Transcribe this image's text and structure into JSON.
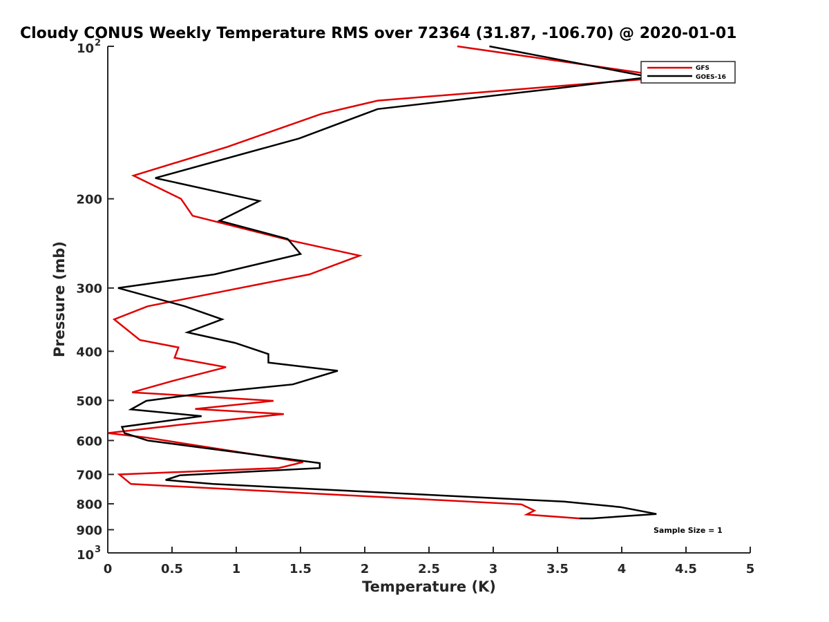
{
  "chart_data": {
    "type": "line",
    "title": "Cloudy CONUS Weekly Temperature RMS over 72364 (31.87, -106.70) @ 2020-01-01",
    "xlabel": "Temperature (K)",
    "ylabel": "Pressure (mb)",
    "xlim": [
      0,
      5
    ],
    "ylim": [
      100,
      1000
    ],
    "y_scale": "log",
    "y_reversed": true,
    "grid": false,
    "x_ticks": [
      {
        "value": 0,
        "label": "0"
      },
      {
        "value": 0.5,
        "label": "0.5"
      },
      {
        "value": 1,
        "label": "1"
      },
      {
        "value": 1.5,
        "label": "1.5"
      },
      {
        "value": 2,
        "label": "2"
      },
      {
        "value": 2.5,
        "label": "2.5"
      },
      {
        "value": 3,
        "label": "3"
      },
      {
        "value": 3.5,
        "label": "3.5"
      },
      {
        "value": 4,
        "label": "4"
      },
      {
        "value": 4.5,
        "label": "4.5"
      },
      {
        "value": 5,
        "label": "5"
      }
    ],
    "y_ticks": [
      {
        "value": 100,
        "label": "10",
        "sup": "2"
      },
      {
        "value": 200,
        "label": "200"
      },
      {
        "value": 300,
        "label": "300"
      },
      {
        "value": 400,
        "label": "400"
      },
      {
        "value": 500,
        "label": "500"
      },
      {
        "value": 600,
        "label": "600"
      },
      {
        "value": 700,
        "label": "700"
      },
      {
        "value": 800,
        "label": "800"
      },
      {
        "value": 900,
        "label": "900"
      },
      {
        "value": 1000,
        "label": "10",
        "sup": "3"
      }
    ],
    "legend_position": "top-right",
    "series": [
      {
        "name": "GFS",
        "color": "#e00000",
        "points": [
          [
            2.72,
            100
          ],
          [
            4.38,
            115
          ],
          [
            2.1,
            128
          ],
          [
            1.66,
            136
          ],
          [
            0.93,
            158
          ],
          [
            0.2,
            180
          ],
          [
            0.57,
            200
          ],
          [
            0.66,
            216
          ],
          [
            1.43,
            242
          ],
          [
            1.96,
            259
          ],
          [
            1.57,
            282
          ],
          [
            1.03,
            300
          ],
          [
            0.31,
            326
          ],
          [
            0.05,
            346
          ],
          [
            0.25,
            380
          ],
          [
            0.55,
            393
          ],
          [
            0.52,
            412
          ],
          [
            0.92,
            430
          ],
          [
            0.5,
            458
          ],
          [
            0.19,
            482
          ],
          [
            1.29,
            501
          ],
          [
            0.68,
            520
          ],
          [
            1.37,
            532
          ],
          [
            0.58,
            558
          ],
          [
            0.0,
            580
          ],
          [
            0.3,
            592
          ],
          [
            1.52,
            662
          ],
          [
            1.33,
            680
          ],
          [
            0.09,
            700
          ],
          [
            0.18,
            731
          ],
          [
            3.22,
            802
          ],
          [
            3.32,
            825
          ],
          [
            3.26,
            840
          ],
          [
            3.67,
            855
          ]
        ]
      },
      {
        "name": "GOES-16",
        "color": "#000000",
        "points": [
          [
            2.97,
            100
          ],
          [
            4.22,
            115
          ],
          [
            3.5,
            121
          ],
          [
            2.1,
            133
          ],
          [
            1.49,
            152
          ],
          [
            0.37,
            182
          ],
          [
            1.18,
            202
          ],
          [
            0.87,
            221
          ],
          [
            1.4,
            240
          ],
          [
            1.5,
            257
          ],
          [
            0.83,
            282
          ],
          [
            0.08,
            300
          ],
          [
            0.6,
            326
          ],
          [
            0.89,
            346
          ],
          [
            0.62,
            367
          ],
          [
            0.99,
            385
          ],
          [
            1.25,
            405
          ],
          [
            1.25,
            421
          ],
          [
            1.79,
            437
          ],
          [
            1.44,
            465
          ],
          [
            0.72,
            485
          ],
          [
            0.3,
            501
          ],
          [
            0.18,
            521
          ],
          [
            0.73,
            537
          ],
          [
            0.11,
            564
          ],
          [
            0.13,
            580
          ],
          [
            0.31,
            600
          ],
          [
            1.65,
            665
          ],
          [
            1.65,
            680
          ],
          [
            0.56,
            703
          ],
          [
            0.45,
            718
          ],
          [
            0.82,
            731
          ],
          [
            3.55,
            792
          ],
          [
            3.99,
            812
          ],
          [
            4.27,
            838
          ],
          [
            3.77,
            855
          ],
          [
            3.67,
            855
          ]
        ]
      }
    ],
    "annotations": [
      {
        "text": "Sample Size = 1"
      }
    ]
  }
}
